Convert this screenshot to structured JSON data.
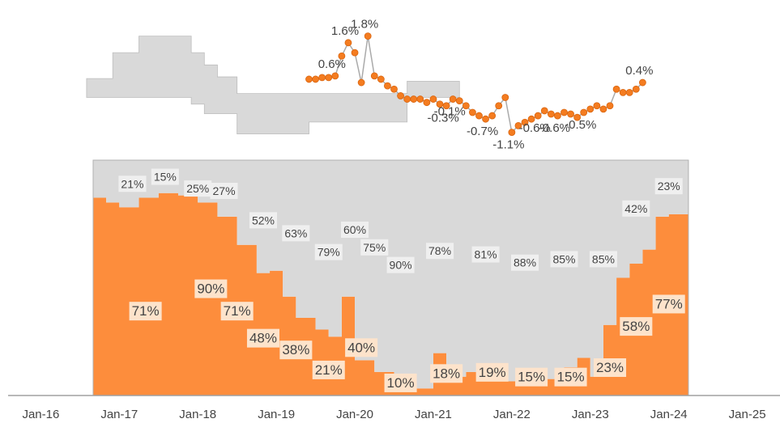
{
  "chart_data": [
    {
      "type": "dot_line",
      "xlim": [
        "2015-08",
        "2025-06"
      ],
      "ylim": [
        -1.5,
        2.4
      ],
      "series": [
        {
          "type": "step_band",
          "color": "#d9d9d9",
          "x": [
            "2016-08",
            "2016-12",
            "2017-04",
            "2017-12",
            "2018-02",
            "2018-04",
            "2018-07",
            "2019-06",
            "2020-09",
            "2021-05"
          ],
          "upper": [
            0.52,
            1.3,
            1.8,
            1.3,
            0.93,
            0.57,
            0.07,
            0.07,
            0.44,
            0.44
          ],
          "lower": [
            -0.05,
            -0.05,
            -0.05,
            -0.25,
            -0.54,
            -0.54,
            -1.15,
            -0.79,
            -0.05,
            -0.05
          ]
        },
        {
          "type": "line",
          "color": "#f47c20",
          "x": [
            "2019-06",
            "2019-07",
            "2019-08",
            "2019-09",
            "2019-10",
            "2019-11",
            "2019-12",
            "2020-01",
            "2020-02",
            "2020-03",
            "2020-04",
            "2020-05",
            "2020-06",
            "2020-07",
            "2020-08",
            "2020-09",
            "2020-10",
            "2020-11",
            "2020-12",
            "2021-01",
            "2021-02",
            "2021-03",
            "2021-04",
            "2021-05",
            "2021-06",
            "2021-07",
            "2021-08",
            "2021-09",
            "2021-10",
            "2021-11",
            "2021-12",
            "2022-01",
            "2022-02",
            "2022-03",
            "2022-04",
            "2022-05",
            "2022-06",
            "2022-07",
            "2022-08",
            "2022-09",
            "2022-10",
            "2022-11",
            "2022-12",
            "2023-01",
            "2023-02",
            "2023-03",
            "2023-04",
            "2023-05",
            "2023-06",
            "2023-07",
            "2023-08",
            "2023-09"
          ],
          "values": [
            0.5,
            0.5,
            0.55,
            0.55,
            0.6,
            1.2,
            1.6,
            1.3,
            0.4,
            1.8,
            0.6,
            0.5,
            0.3,
            0.2,
            0.0,
            -0.1,
            -0.1,
            -0.1,
            -0.2,
            -0.1,
            -0.25,
            -0.3,
            -0.1,
            -0.15,
            -0.3,
            -0.5,
            -0.6,
            -0.7,
            -0.6,
            -0.3,
            -0.05,
            -1.1,
            -0.9,
            -0.8,
            -0.7,
            -0.6,
            -0.45,
            -0.55,
            -0.6,
            -0.5,
            -0.55,
            -0.65,
            -0.5,
            -0.4,
            -0.3,
            -0.4,
            -0.3,
            0.2,
            0.1,
            0.1,
            0.2,
            0.4
          ],
          "value_labels": [
            null,
            null,
            null,
            null,
            "0.6%",
            null,
            "1.6%",
            null,
            null,
            "1.8%",
            null,
            null,
            null,
            null,
            null,
            null,
            null,
            null,
            null,
            null,
            null,
            "-0.3%",
            "-0.1%",
            null,
            null,
            null,
            null,
            "-0.7%",
            null,
            null,
            null,
            "-1.1%",
            null,
            null,
            null,
            "-0.6%",
            null,
            null,
            "-0.6%",
            null,
            null,
            null,
            "-0.5%",
            null,
            null,
            null,
            null,
            null,
            null,
            null,
            null,
            "0.4%"
          ]
        }
      ]
    },
    {
      "type": "stacked_step_area",
      "xlim": [
        "2015-08",
        "2025-06"
      ],
      "ylim": [
        0,
        100
      ],
      "xticks": [
        {
          "value": "2016-01",
          "label": "Jan-16"
        },
        {
          "value": "2017-01",
          "label": "Jan-17"
        },
        {
          "value": "2018-01",
          "label": "Jan-18"
        },
        {
          "value": "2019-01",
          "label": "Jan-19"
        },
        {
          "value": "2020-01",
          "label": "Jan-20"
        },
        {
          "value": "2021-01",
          "label": "Jan-21"
        },
        {
          "value": "2022-01",
          "label": "Jan-22"
        },
        {
          "value": "2023-01",
          "label": "Jan-23"
        },
        {
          "value": "2024-01",
          "label": "Jan-24"
        },
        {
          "value": "2025-01",
          "label": "Jan-25"
        }
      ],
      "x": [
        "2016-09",
        "2016-11",
        "2017-01",
        "2017-04",
        "2017-07",
        "2017-10",
        "2018-01",
        "2018-04",
        "2018-07",
        "2018-10",
        "2018-12",
        "2019-02",
        "2019-04",
        "2019-07",
        "2019-09",
        "2019-11",
        "2020-01",
        "2020-04",
        "2020-07",
        "2020-10",
        "2021-01",
        "2021-03",
        "2021-06",
        "2021-09",
        "2021-12",
        "2022-03",
        "2022-06",
        "2022-09",
        "2022-11",
        "2023-01",
        "2023-03",
        "2023-05",
        "2023-07",
        "2023-09",
        "2023-11",
        "2024-01",
        "2024-04"
      ],
      "series": [
        {
          "color": "#fd8d3c",
          "label_color": "#fde3cb",
          "values": [
            84,
            82,
            80,
            84,
            86,
            85,
            82,
            76,
            64,
            52,
            53,
            42,
            33,
            28,
            25,
            42,
            15,
            10,
            6,
            3,
            18,
            8,
            10,
            7,
            6,
            5,
            7,
            12,
            16,
            8,
            30,
            50,
            56,
            62,
            76,
            77,
            77
          ],
          "labels": [
            {
              "x": "2017-05",
              "value": 71,
              "label": "71%"
            },
            {
              "x": "2018-03",
              "value": 90,
              "label": "90%"
            },
            {
              "x": "2018-07",
              "value": 71,
              "label": "71%"
            },
            {
              "x": "2018-11",
              "value": 48,
              "label": "48%"
            },
            {
              "x": "2019-04",
              "value": 38,
              "label": "38%"
            },
            {
              "x": "2019-09",
              "value": 21,
              "label": "21%"
            },
            {
              "x": "2020-02",
              "value": 40,
              "label": "40%"
            },
            {
              "x": "2020-08",
              "value": 10,
              "label": "10%"
            },
            {
              "x": "2021-03",
              "value": 18,
              "label": "18%"
            },
            {
              "x": "2021-10",
              "value": 19,
              "label": "19%"
            },
            {
              "x": "2022-04",
              "value": 15,
              "label": "15%"
            },
            {
              "x": "2022-10",
              "value": 15,
              "label": "15%"
            },
            {
              "x": "2023-04",
              "value": 23,
              "label": "23%"
            },
            {
              "x": "2023-08",
              "value": 58,
              "label": "58%"
            },
            {
              "x": "2024-01",
              "value": 77,
              "label": "77%"
            }
          ]
        },
        {
          "color": "#d9d9d9",
          "label_color": "#efefef",
          "values": [
            16,
            18,
            20,
            16,
            14,
            15,
            18,
            24,
            36,
            48,
            47,
            58,
            67,
            72,
            75,
            58,
            85,
            90,
            94,
            97,
            82,
            92,
            90,
            93,
            94,
            95,
            93,
            88,
            84,
            92,
            70,
            50,
            44,
            38,
            24,
            23,
            23
          ],
          "labels": [
            {
              "x": "2017-03",
              "value": 21,
              "label": "21%"
            },
            {
              "x": "2017-08",
              "value": 15,
              "label": "15%"
            },
            {
              "x": "2018-01",
              "value": 25,
              "label": "25%"
            },
            {
              "x": "2018-05",
              "value": 27,
              "label": "27%"
            },
            {
              "x": "2018-11",
              "value": 52,
              "label": "52%"
            },
            {
              "x": "2019-04",
              "value": 63,
              "label": "63%"
            },
            {
              "x": "2019-09",
              "value": 79,
              "label": "79%"
            },
            {
              "x": "2020-01",
              "value": 60,
              "label": "60%"
            },
            {
              "x": "2020-04",
              "value": 75,
              "label": "75%"
            },
            {
              "x": "2020-08",
              "value": 90,
              "label": "90%"
            },
            {
              "x": "2021-02",
              "value": 78,
              "label": "78%"
            },
            {
              "x": "2021-09",
              "value": 81,
              "label": "81%"
            },
            {
              "x": "2022-03",
              "value": 88,
              "label": "88%"
            },
            {
              "x": "2022-09",
              "value": 85,
              "label": "85%"
            },
            {
              "x": "2023-03",
              "value": 85,
              "label": "85%"
            },
            {
              "x": "2023-08",
              "value": 42,
              "label": "42%"
            },
            {
              "x": "2024-01",
              "value": 23,
              "label": "23%"
            }
          ]
        }
      ]
    }
  ]
}
